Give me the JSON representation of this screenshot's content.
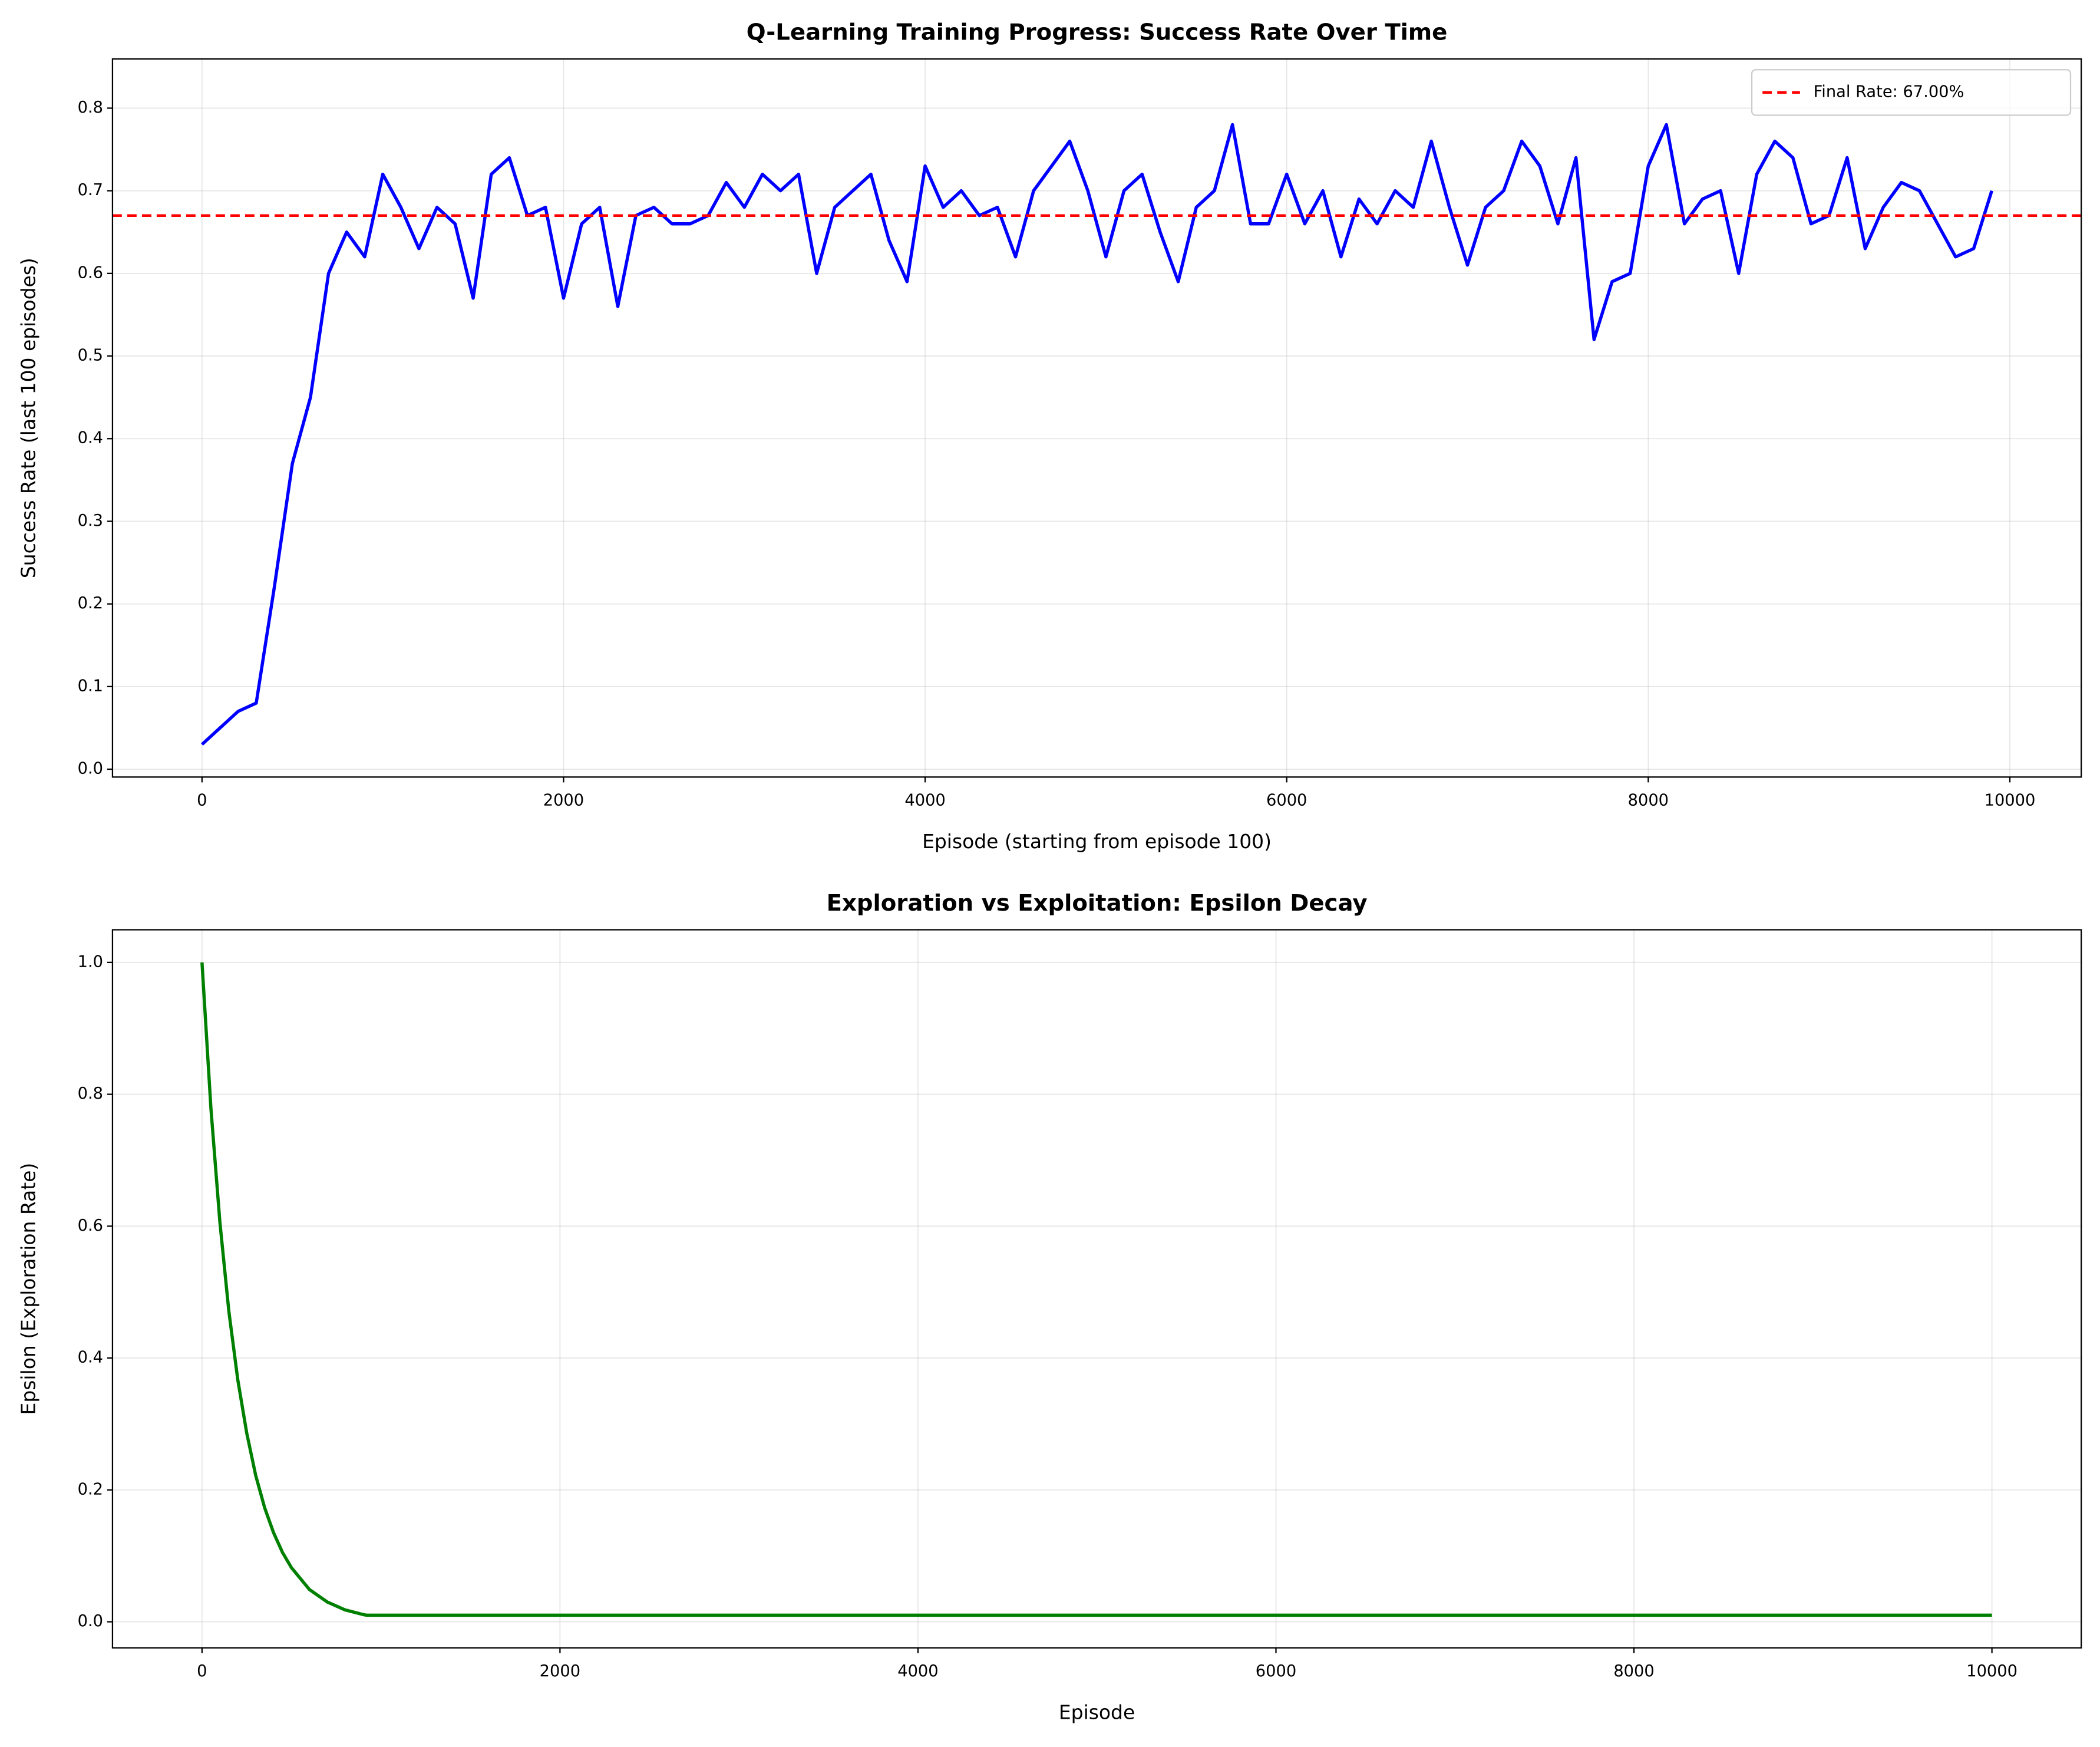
{
  "chart_data": [
    {
      "type": "line",
      "title": "Q-Learning Training Progress: Success Rate Over Time",
      "xlabel": "Episode (starting from episode 100)",
      "ylabel": "Success Rate (last 100 episodes)",
      "x": [
        0,
        100,
        200,
        300,
        400,
        500,
        600,
        700,
        800,
        900,
        1000,
        1100,
        1200,
        1300,
        1400,
        1500,
        1600,
        1700,
        1800,
        1900,
        2000,
        2100,
        2200,
        2300,
        2400,
        2500,
        2600,
        2700,
        2800,
        2900,
        3000,
        3100,
        3200,
        3300,
        3400,
        3500,
        3600,
        3700,
        3800,
        3900,
        4000,
        4100,
        4200,
        4300,
        4400,
        4500,
        4600,
        4700,
        4800,
        4900,
        5000,
        5100,
        5200,
        5300,
        5400,
        5500,
        5600,
        5700,
        5800,
        5900,
        6000,
        6100,
        6200,
        6300,
        6400,
        6500,
        6600,
        6700,
        6800,
        6900,
        7000,
        7100,
        7200,
        7300,
        7400,
        7500,
        7600,
        7700,
        7800,
        7900,
        8000,
        8100,
        8200,
        8300,
        8400,
        8500,
        8600,
        8700,
        8800,
        8900,
        9000,
        9100,
        9200,
        9300,
        9400,
        9500,
        9600,
        9700,
        9800,
        9900
      ],
      "series": [
        {
          "color": "#0000ff",
          "values": [
            0.03,
            0.05,
            0.07,
            0.08,
            0.22,
            0.37,
            0.45,
            0.6,
            0.65,
            0.62,
            0.72,
            0.68,
            0.63,
            0.68,
            0.66,
            0.57,
            0.72,
            0.74,
            0.67,
            0.68,
            0.57,
            0.66,
            0.68,
            0.56,
            0.67,
            0.68,
            0.66,
            0.66,
            0.67,
            0.71,
            0.68,
            0.72,
            0.7,
            0.72,
            0.6,
            0.68,
            0.7,
            0.72,
            0.64,
            0.59,
            0.73,
            0.68,
            0.7,
            0.67,
            0.68,
            0.62,
            0.7,
            0.73,
            0.76,
            0.7,
            0.62,
            0.7,
            0.72,
            0.65,
            0.59,
            0.68,
            0.7,
            0.78,
            0.66,
            0.66,
            0.72,
            0.66,
            0.7,
            0.62,
            0.69,
            0.66,
            0.7,
            0.68,
            0.76,
            0.68,
            0.61,
            0.68,
            0.7,
            0.76,
            0.73,
            0.66,
            0.74,
            0.52,
            0.59,
            0.6,
            0.73,
            0.78,
            0.66,
            0.69,
            0.7,
            0.6,
            0.72,
            0.76,
            0.74,
            0.66,
            0.67,
            0.74,
            0.63,
            0.68,
            0.71,
            0.7,
            0.66,
            0.62,
            0.63,
            0.7
          ]
        }
      ],
      "hlines": [
        {
          "value": 0.67,
          "label": "Final Rate: 67.00%",
          "color": "#ff0000"
        }
      ],
      "legend": "upper right",
      "xlim": [
        -495,
        10395
      ],
      "xticks": [
        0,
        2000,
        4000,
        6000,
        8000,
        10000
      ],
      "ylim": [
        -0.0095,
        0.8595
      ],
      "yticks": [
        {
          "value": 0,
          "label": "0.0"
        },
        0.1,
        0.2,
        0.3,
        0.4,
        0.5,
        0.6,
        0.7,
        0.8
      ],
      "grid": true
    },
    {
      "type": "line",
      "title": "Exploration vs Exploitation: Epsilon Decay",
      "xlabel": "Episode",
      "ylabel": "Epsilon (Exploration Rate)",
      "x": [
        0,
        50,
        100,
        150,
        200,
        250,
        300,
        350,
        400,
        450,
        500,
        600,
        700,
        800,
        900,
        920,
        10000
      ],
      "series": [
        {
          "color": "#008000",
          "values": [
            1,
            0.778,
            0.606,
            0.471,
            0.367,
            0.286,
            0.222,
            0.173,
            0.135,
            0.105,
            0.082,
            0.049,
            0.03,
            0.018,
            0.011,
            0.01,
            0.01
          ]
        }
      ],
      "xlim": [
        -500,
        10499
      ],
      "xticks": [
        0,
        2000,
        4000,
        6000,
        8000,
        10000
      ],
      "ylim": [
        -0.0395,
        1.0495
      ],
      "yticks": [
        {
          "value": 0,
          "label": "0.0"
        },
        0.2,
        0.4,
        0.6,
        0.8,
        {
          "value": 1,
          "label": "1.0"
        }
      ],
      "grid": true
    }
  ]
}
